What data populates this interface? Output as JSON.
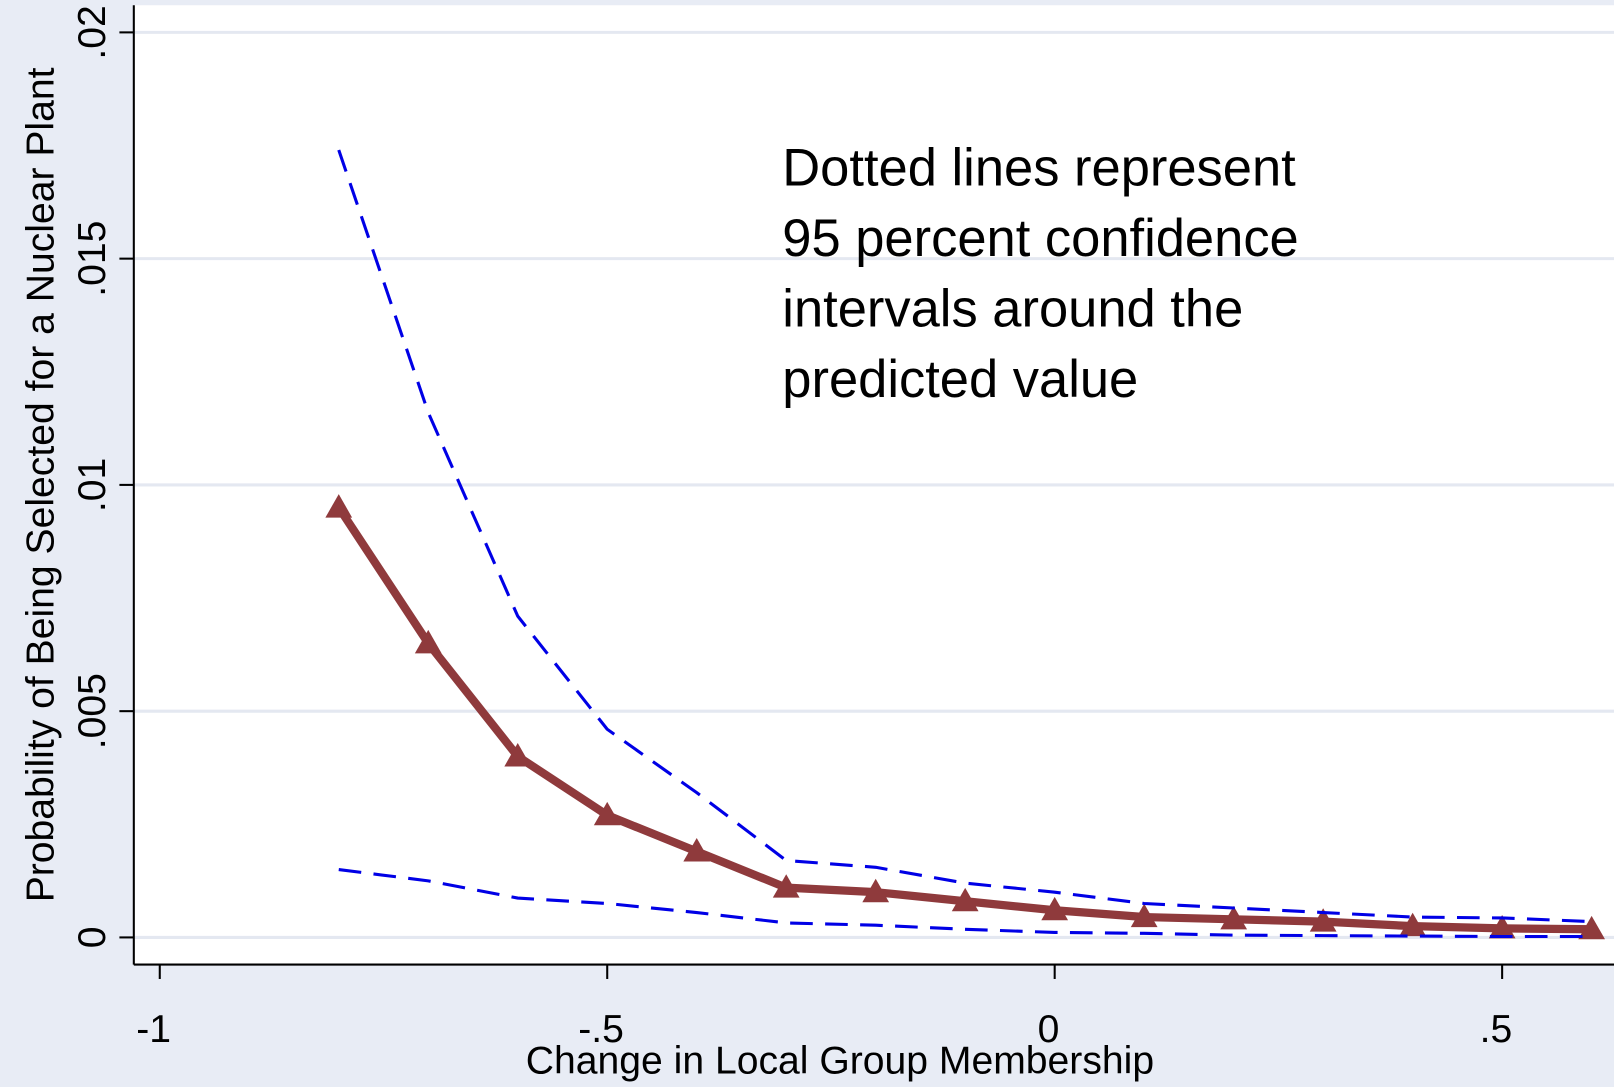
{
  "chart_data": {
    "type": "line",
    "annotation": [
      "Dotted lines represent",
      "95 percent confidence",
      "intervals around the",
      "predicted value"
    ],
    "x_label": "Change in Local Group Membership",
    "y_label": "Probability of Being Selected for a Nuclear Plant",
    "x": [
      -0.8,
      -0.7,
      -0.6,
      -0.5,
      -0.4,
      -0.3,
      -0.2,
      -0.1,
      0,
      0.1,
      0.2,
      0.3,
      0.4,
      0.5,
      0.6
    ],
    "series": [
      {
        "color": "#8f3a3c",
        "style": "solid",
        "marker": "triangle",
        "values": [
          0.0095,
          0.0065,
          0.004,
          0.0027,
          0.0019,
          0.0011,
          0.001,
          0.0008,
          0.0006,
          0.00045,
          0.0004,
          0.00035,
          0.00025,
          0.0002,
          0.00018
        ]
      },
      {
        "color": "#0000e6",
        "style": "dashed",
        "values": [
          0.0174,
          0.0116,
          0.0071,
          0.0046,
          0.0032,
          0.0017,
          0.00155,
          0.0012,
          0.001,
          0.00075,
          0.00065,
          0.00055,
          0.00045,
          0.00043,
          0.00035
        ]
      },
      {
        "color": "#0000e6",
        "style": "dashed",
        "values": [
          0.0015,
          0.00125,
          0.00087,
          0.00075,
          0.00055,
          0.00032,
          0.00027,
          0.00018,
          0.00011,
          9e-05,
          5e-05,
          4e-05,
          3e-05,
          2e-05,
          2e-05
        ]
      }
    ],
    "xlim": [
      -1.029,
      0.625
    ],
    "ylim": [
      -0.0006,
      0.0206
    ],
    "xticks": [
      -1,
      {
        "value": -0.5,
        "label": "-.5"
      },
      0,
      {
        "value": 0.5,
        "label": ".5"
      }
    ],
    "yticks": [
      0,
      {
        "value": 0.005,
        "label": ".005"
      },
      {
        "value": 0.01,
        "label": ".01"
      },
      {
        "value": 0.015,
        "label": ".015"
      },
      {
        "value": 0.02,
        "label": ".02"
      }
    ],
    "grid": true
  }
}
